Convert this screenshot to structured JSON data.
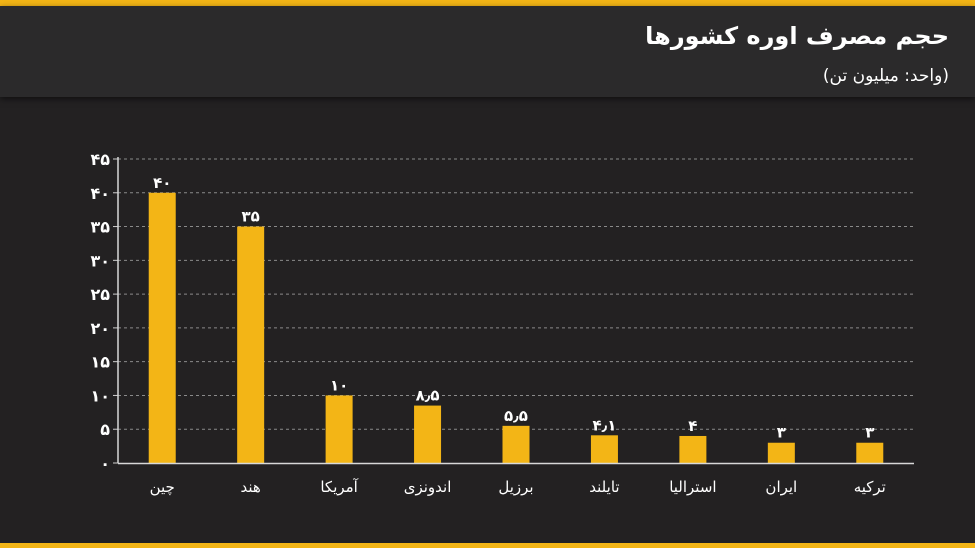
{
  "header": {
    "title": "حجم مصرف اوره کشورها",
    "subtitle": "(واحد: میلیون تن)"
  },
  "colors": {
    "background": "#232122",
    "header": "#2b2a2b",
    "accent": "#f3b516",
    "bar": "#f3b516",
    "text": "#ffffff"
  },
  "chart_data": {
    "type": "bar",
    "title": "حجم مصرف اوره کشورها",
    "subtitle": "(واحد: میلیون تن)",
    "categories": [
      "چین",
      "هند",
      "آمریکا",
      "اندونزی",
      "برزیل",
      "تایلند",
      "استرالیا",
      "ایران",
      "ترکیه"
    ],
    "values": [
      40,
      35,
      10,
      8.5,
      5.5,
      4.1,
      4,
      3,
      3
    ],
    "value_labels": [
      "۴۰",
      "۳۵",
      "۱۰",
      "۸٫۵",
      "۵٫۵",
      "۴٫۱",
      "۴",
      "۳",
      "۳"
    ],
    "ylim": [
      0,
      45
    ],
    "yticks": [
      0,
      5,
      10,
      15,
      20,
      25,
      30,
      35,
      40,
      45
    ],
    "ytick_labels": [
      "۰",
      "۵",
      "۱۰",
      "۱۵",
      "۲۰",
      "۲۵",
      "۳۰",
      "۳۵",
      "۴۰",
      "۴۵"
    ],
    "grid": true,
    "grid_style": "dashed"
  }
}
